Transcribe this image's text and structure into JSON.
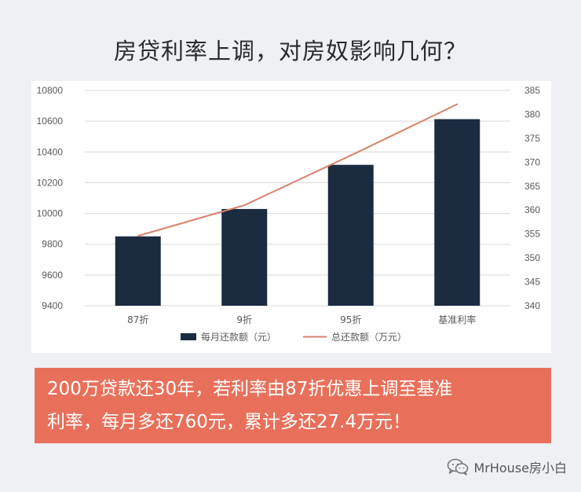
{
  "headline": "房贷利率上调，对房奴影响几何？",
  "chart_data": {
    "type": "bar",
    "categories": [
      "87折",
      "9折",
      "95折",
      "基准利率"
    ],
    "series": [
      {
        "name": "每月还款额（元）",
        "kind": "bar",
        "axis": "left",
        "values": [
          9851,
          10029,
          10316,
          10613
        ],
        "color": "#1b2b40"
      },
      {
        "name": "总还款额（万元）",
        "kind": "line",
        "axis": "right",
        "values": [
          354.6,
          361.0,
          371.4,
          382.1
        ],
        "color": "#d9826c"
      }
    ],
    "y_left": {
      "min": 9400,
      "max": 10800,
      "ticks": [
        "9400",
        "9600",
        "9800",
        "10000",
        "10200",
        "10400",
        "10600",
        "10800"
      ]
    },
    "y_right": {
      "min": 340,
      "max": 385,
      "ticks": [
        "340",
        "345",
        "350",
        "355",
        "360",
        "365",
        "370",
        "375",
        "380",
        "385"
      ]
    },
    "grid": true,
    "legend_position": "bottom"
  },
  "banner": {
    "line1": "200万贷款还30年，若利率由87折优惠上调至基准",
    "line2": "利率，每月多还760元，累计多还27.4万元！"
  },
  "watermark": {
    "text": "MrHouse房小白",
    "icon": "wechat-icon"
  }
}
